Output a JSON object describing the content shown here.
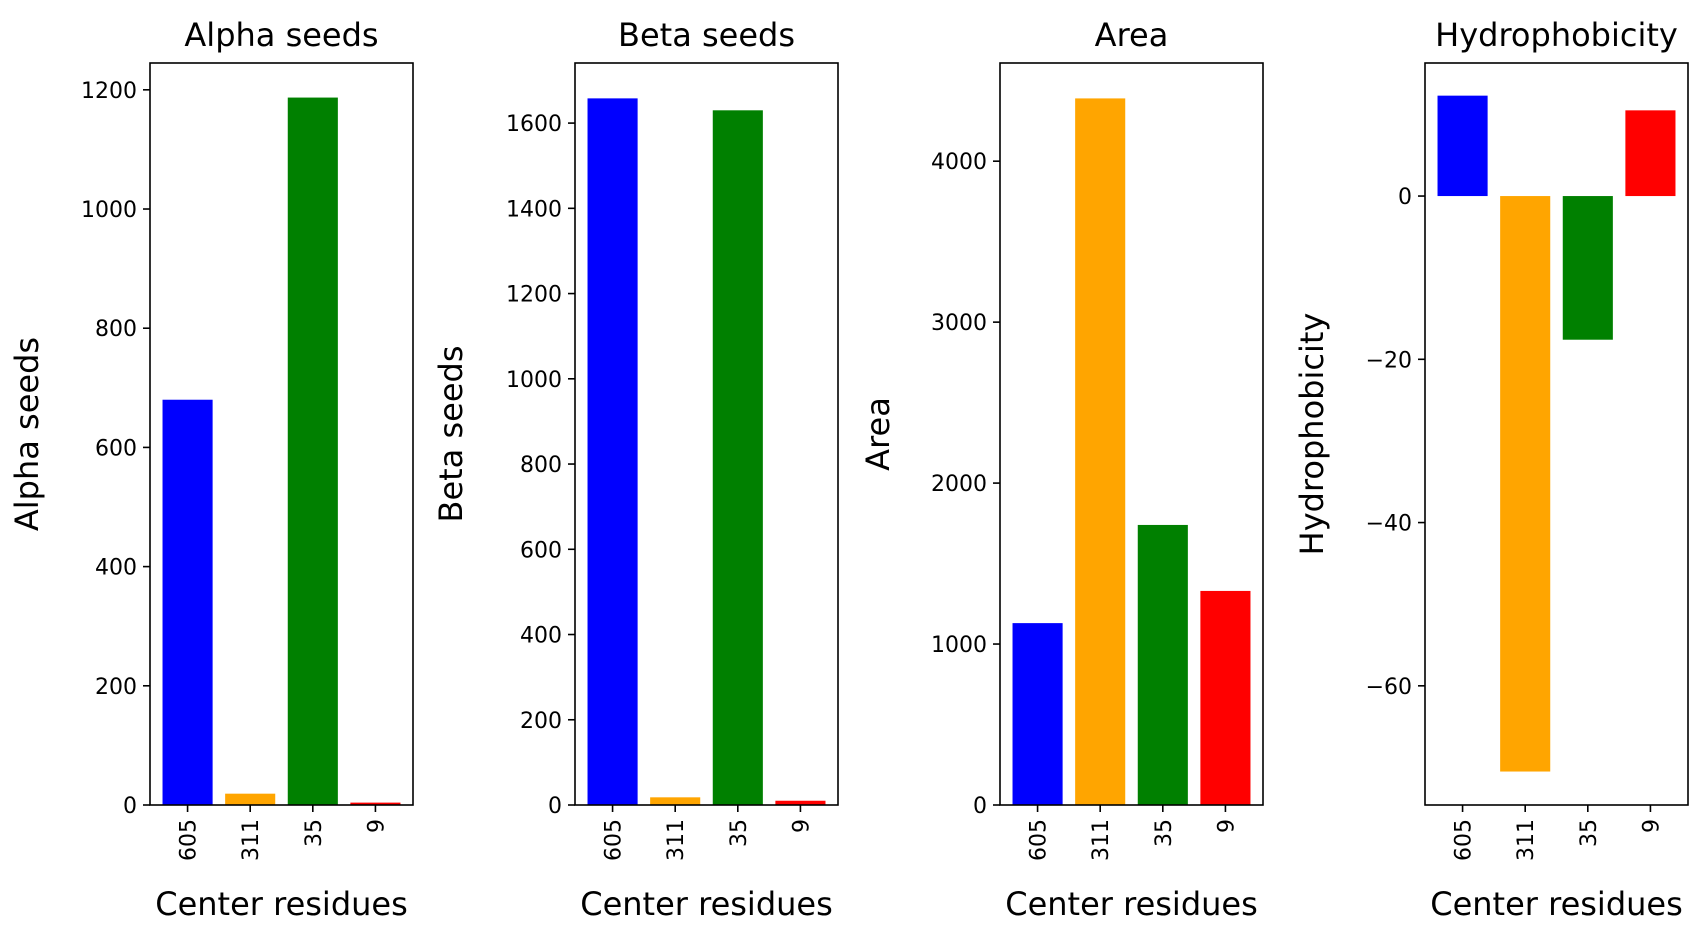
{
  "chart_data": [
    {
      "type": "bar",
      "title": "Alpha seeds",
      "xlabel": "Center residues",
      "ylabel": "Alpha seeds",
      "categories": [
        "605",
        "311",
        "35",
        "9"
      ],
      "values": [
        680,
        19,
        1187,
        4
      ],
      "colors": [
        "#0000ff",
        "#ffa500",
        "#008000",
        "#ff0000"
      ],
      "ylim": [
        0,
        1245
      ],
      "yticks": [
        0,
        200,
        400,
        600,
        800,
        1000,
        1200
      ]
    },
    {
      "type": "bar",
      "title": "Beta seeds",
      "xlabel": "Center residues",
      "ylabel": "Beta seeds",
      "categories": [
        "605",
        "311",
        "35",
        "9"
      ],
      "values": [
        1658,
        18,
        1630,
        10
      ],
      "colors": [
        "#0000ff",
        "#ffa500",
        "#008000",
        "#ff0000"
      ],
      "ylim": [
        0,
        1741
      ],
      "yticks": [
        0,
        200,
        400,
        600,
        800,
        1000,
        1200,
        1400,
        1600
      ]
    },
    {
      "type": "bar",
      "title": "Area",
      "xlabel": "Center residues",
      "ylabel": "Area",
      "categories": [
        "605",
        "311",
        "35",
        "9"
      ],
      "values": [
        1130,
        4390,
        1740,
        1330
      ],
      "colors": [
        "#0000ff",
        "#ffa500",
        "#008000",
        "#ff0000"
      ],
      "ylim": [
        0,
        4610
      ],
      "yticks": [
        0,
        1000,
        2000,
        3000,
        4000
      ]
    },
    {
      "type": "bar",
      "title": "Hydrophobicity",
      "xlabel": "Center residues",
      "ylabel": "Hydrophobicity",
      "categories": [
        "605",
        "311",
        "35",
        "9"
      ],
      "values": [
        12.3,
        -70.5,
        -17.6,
        10.5
      ],
      "colors": [
        "#0000ff",
        "#ffa500",
        "#008000",
        "#ff0000"
      ],
      "ylim": [
        -74.6,
        16.3
      ],
      "yticks": [
        -60,
        -40,
        -20,
        0
      ]
    }
  ]
}
